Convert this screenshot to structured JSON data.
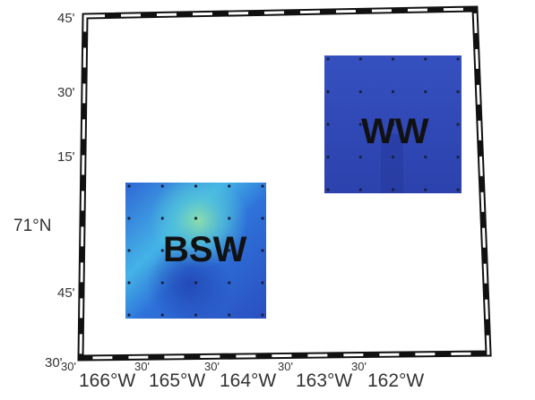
{
  "map": {
    "latitude_labels": {
      "top": "45'",
      "upper": "30'",
      "mid_upper": "15'",
      "main": "71°N",
      "lower": "45'",
      "bottom": "30'"
    },
    "longitude_labels": {
      "minute_mark": "30'",
      "lon_166": "166°W",
      "lon_165": "165°W",
      "lon_164": "164°W",
      "lon_163": "163°W",
      "lon_162": "162°W"
    },
    "regions": {
      "bsw": {
        "label": "BSW",
        "colors": [
          "#2b5fd1",
          "#3fa7e8",
          "#6cd3c0",
          "#3471d9",
          "#2a4fc2"
        ]
      },
      "ww": {
        "label": "WW",
        "colors": [
          "#2f4ab8",
          "#2a3fa8",
          "#334fbf"
        ]
      }
    },
    "frame": {
      "border_color": "#111111",
      "dash_color": "#ffffff"
    }
  }
}
